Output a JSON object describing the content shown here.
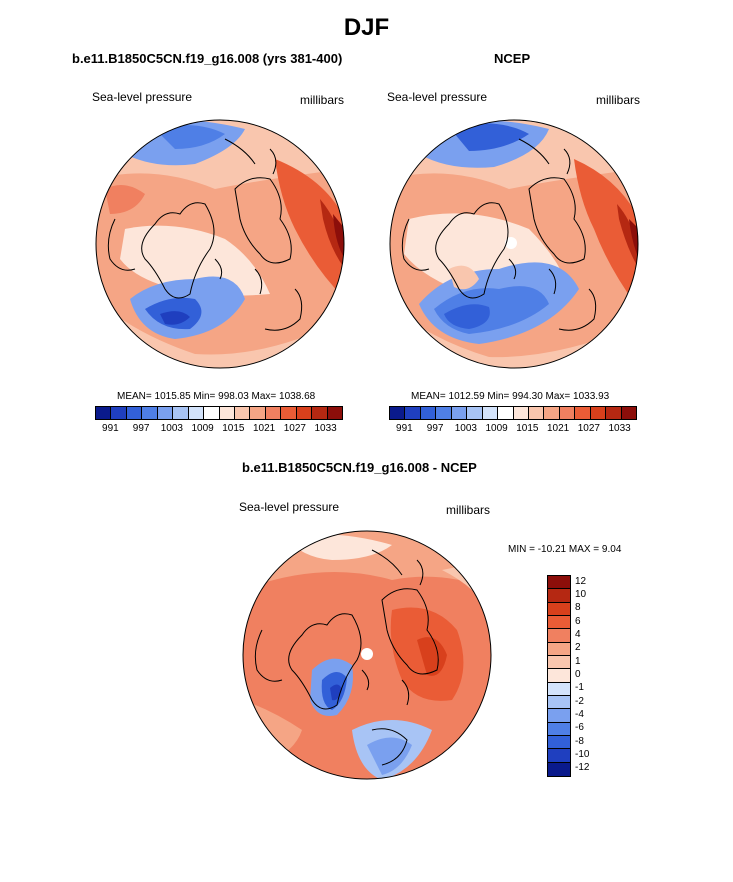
{
  "title": "DJF",
  "panel_left": {
    "title": "b.e11.B1850C5CN.f19_g16.008 (yrs 381-400)",
    "variable": "Sea-level pressure",
    "units": "millibars",
    "stats": "MEAN= 1015.85  Min= 998.03  Max= 1038.68"
  },
  "panel_right": {
    "title": "NCEP",
    "variable": "Sea-level pressure",
    "units": "millibars",
    "stats": "MEAN= 1012.59  Min= 994.30  Max= 1033.93"
  },
  "panel_diff": {
    "title": "b.e11.B1850C5CN.f19_g16.008 - NCEP",
    "variable": "Sea-level pressure",
    "units": "millibars",
    "stats": "MIN = -10.21 MAX =   9.04"
  },
  "colorbar_abs": {
    "labels": [
      "991",
      "997",
      "1003",
      "1009",
      "1015",
      "1021",
      "1027",
      "1033"
    ],
    "colors": [
      "#0a1a8c",
      "#1f3fbf",
      "#3260d8",
      "#4f7fe6",
      "#7aa0ef",
      "#a8c4f5",
      "#d3e3fb",
      "#ffffff",
      "#fde6da",
      "#f9c6ae",
      "#f5a585",
      "#f08060",
      "#ea5c36",
      "#d8401c",
      "#b52812",
      "#8c0e0a"
    ]
  },
  "colorbar_diff": {
    "labels": [
      "12",
      "10",
      "8",
      "6",
      "4",
      "2",
      "1",
      "0",
      "-1",
      "-2",
      "-4",
      "-6",
      "-8",
      "-10",
      "-12"
    ],
    "colors": [
      "#8c0e0a",
      "#b52812",
      "#d8401c",
      "#ea5c36",
      "#f08060",
      "#f5a585",
      "#f9c6ae",
      "#fde6da",
      "#d3e3fb",
      "#a8c4f5",
      "#7aa0ef",
      "#4f7fe6",
      "#3260d8",
      "#1f3fbf",
      "#0a1a8c"
    ]
  }
}
